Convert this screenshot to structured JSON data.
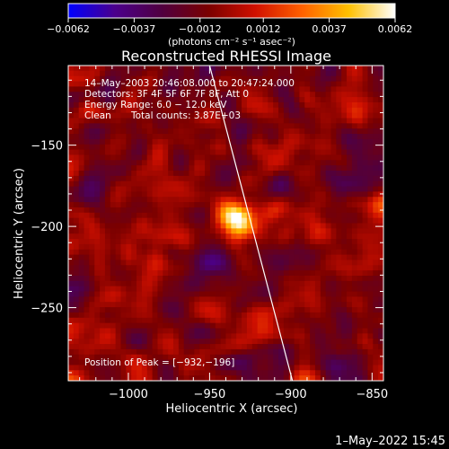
{
  "chart_data": {
    "type": "heatmap",
    "title": "Reconstructed RHESSI Image",
    "xlabel": "Heliocentric X (arcsec)",
    "ylabel": "Heliocentric Y (arcsec)",
    "xlim": [
      -1037,
      -843
    ],
    "ylim": [
      -295,
      -101
    ],
    "x_ticks": [
      -1000,
      -950,
      -900,
      -850
    ],
    "x_tick_labels": [
      "−1000",
      "−950",
      "−900",
      "−850"
    ],
    "y_ticks": [
      -250,
      -200,
      -150
    ],
    "y_tick_labels": [
      "−250",
      "−200",
      "−150"
    ],
    "colorbar": {
      "range": [
        -0.0062,
        0.0062
      ],
      "ticks": [
        -0.0062,
        -0.0037,
        -0.0012,
        0.0012,
        0.0037,
        0.0062
      ],
      "tick_labels": [
        "−0.0062",
        "−0.0037",
        "−0.0012",
        "0.0012",
        "0.0037",
        "0.0062"
      ],
      "units_label": "(photons cm⁻² s⁻¹ asec⁻²)",
      "colormap": [
        "#0000ff",
        "#4b008c",
        "#500040",
        "#7a0000",
        "#d01000",
        "#ff6000",
        "#ffc000",
        "#ffffff"
      ]
    },
    "annotations": {
      "time_range": "14–May–2003 20:46:08.000 to 20:47:24.000",
      "detectors": "Detectors: 3F 4F 5F 6F 7F 8F, Att 0",
      "energy": "Energy Range: 6.0 − 12.0 keV",
      "method": "Clean",
      "total_counts": "Total counts: 3.87E+03",
      "peak": "Position of Peak = [−932,−196]"
    },
    "peak": {
      "x": -932,
      "y": -196
    },
    "limb_line": [
      {
        "x": -950,
        "y": -101
      },
      {
        "x": -899,
        "y": -295
      }
    ],
    "grid": false
  },
  "footer": {
    "datestamp": "1–May–2022 15:45"
  }
}
